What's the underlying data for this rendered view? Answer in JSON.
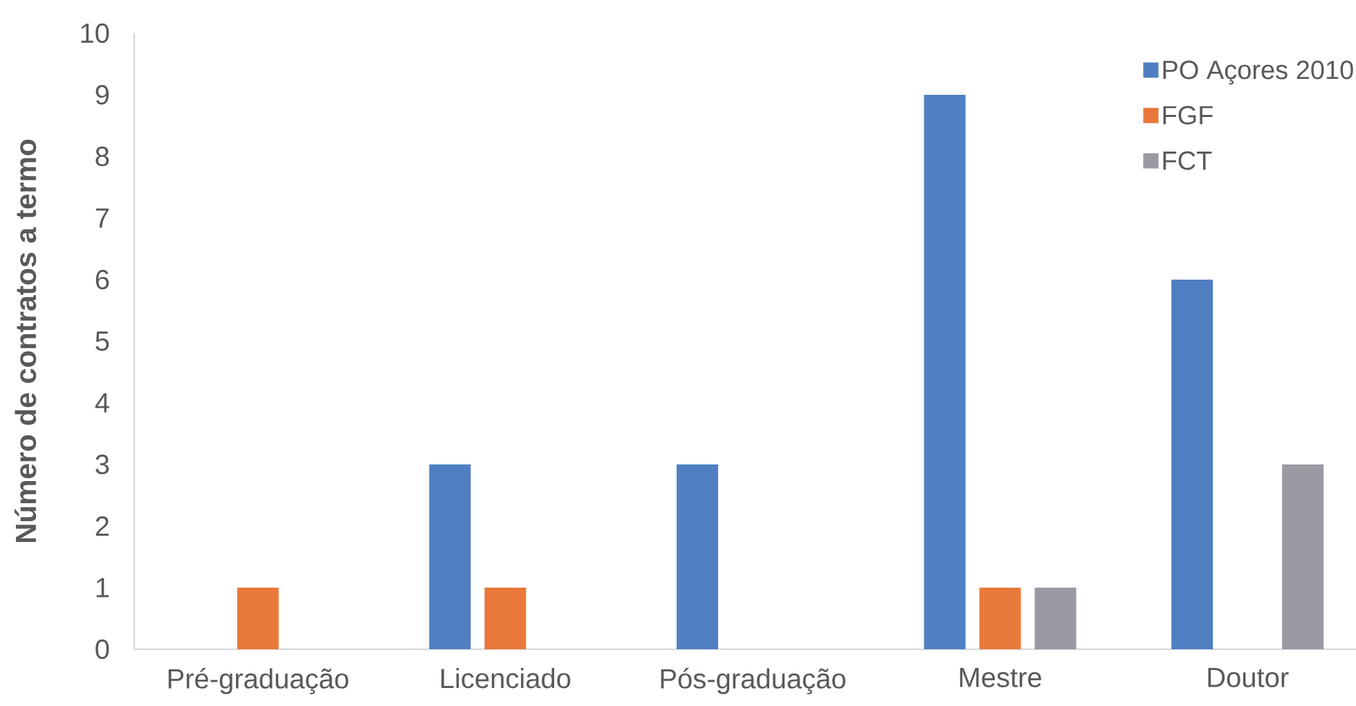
{
  "chart_data": {
    "type": "bar",
    "ylabel": "Número de contratos a termo",
    "categories": [
      "Pré-graduação",
      "Licenciado",
      "Pós-graduação",
      "Mestre",
      "Doutor"
    ],
    "series": [
      {
        "name": "PO Açores 2010",
        "color": "#4f7fc1",
        "values": [
          null,
          3,
          3,
          9,
          6
        ]
      },
      {
        "name": "FGF",
        "color": "#e8793a",
        "values": [
          1,
          1,
          null,
          1,
          null
        ]
      },
      {
        "name": "FCT",
        "color": "#9a9aa3",
        "values": [
          null,
          null,
          null,
          1,
          3
        ]
      }
    ],
    "ylim": [
      0,
      10
    ],
    "yticks": [
      0,
      1,
      2,
      3,
      4,
      5,
      6,
      7,
      8,
      9,
      10
    ],
    "legend": "top right"
  }
}
